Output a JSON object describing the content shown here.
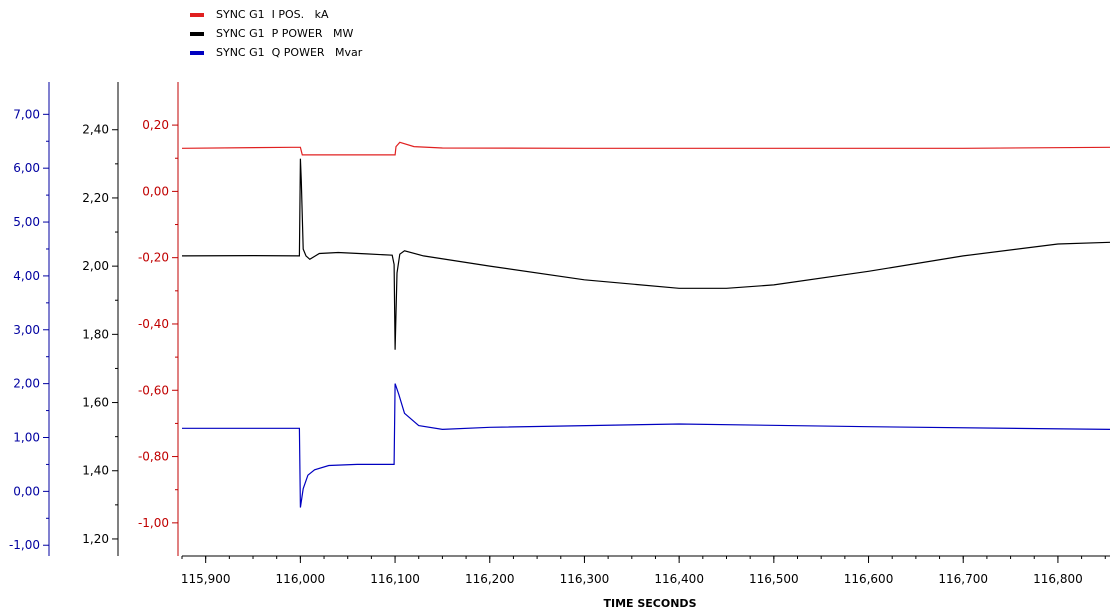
{
  "chart_data": {
    "type": "line",
    "xlabel": "TIME SECONDS",
    "x_ticks": [
      "115,900",
      "116,000",
      "116,100",
      "116,200",
      "116,300",
      "116,400",
      "116,500",
      "116,600",
      "116,700",
      "116,800"
    ],
    "xlim": [
      115.875,
      116.855
    ],
    "legend": {
      "placement": "top-left"
    },
    "grid": false,
    "axes": [
      {
        "id": "q",
        "color": "#0000a0",
        "ylim": [
          -1.2,
          7.6
        ],
        "ticks": [
          "7,00",
          "6,00",
          "5,00",
          "4,00",
          "3,00",
          "2,00",
          "1,00",
          "0,00",
          "-1,00"
        ]
      },
      {
        "id": "p",
        "color": "#000000",
        "ylim": [
          1.15,
          2.54
        ],
        "ticks": [
          "2,40",
          "2,20",
          "2,00",
          "1,80",
          "1,60",
          "1,40",
          "1,20"
        ]
      },
      {
        "id": "i",
        "color": "#c00000",
        "ylim": [
          -1.1,
          0.33
        ],
        "ticks": [
          "0,20",
          "0,00",
          "-0,20",
          "-0,40",
          "-0,60",
          "-0,80",
          "-1,00"
        ]
      }
    ],
    "series": [
      {
        "name": "SYNC G1  I POS.   kA",
        "axis": "i",
        "color": "#e02020",
        "x": [
          115.875,
          115.99,
          116.0,
          116.002,
          116.1,
          116.101,
          116.105,
          116.12,
          116.15,
          116.3,
          116.5,
          116.7,
          116.855
        ],
        "y": [
          0.13,
          0.133,
          0.133,
          0.11,
          0.11,
          0.135,
          0.148,
          0.135,
          0.131,
          0.13,
          0.13,
          0.13,
          0.133
        ]
      },
      {
        "name": "SYNC G1  P POWER   MW",
        "axis": "p",
        "color": "#000000",
        "x": [
          115.875,
          115.95,
          115.999,
          116.0,
          116.001,
          116.003,
          116.006,
          116.01,
          116.02,
          116.04,
          116.07,
          116.097,
          116.099,
          116.1,
          116.102,
          116.105,
          116.11,
          116.13,
          116.2,
          116.3,
          116.4,
          116.45,
          116.5,
          116.6,
          116.7,
          116.8,
          116.855
        ],
        "y": [
          2.03,
          2.031,
          2.03,
          2.315,
          2.25,
          2.05,
          2.03,
          2.02,
          2.037,
          2.04,
          2.036,
          2.032,
          2.005,
          1.755,
          1.98,
          2.035,
          2.045,
          2.03,
          2.0,
          1.96,
          1.935,
          1.935,
          1.945,
          1.985,
          2.03,
          2.065,
          2.07
        ]
      },
      {
        "name": "SYNC G1  Q POWER   Mvar",
        "axis": "q",
        "color": "#0000c0",
        "x": [
          115.875,
          115.95,
          115.999,
          116.0,
          116.003,
          116.008,
          116.015,
          116.03,
          116.06,
          116.099,
          116.1,
          116.104,
          116.11,
          116.125,
          116.15,
          116.2,
          116.4,
          116.6,
          116.855
        ],
        "y": [
          1.17,
          1.17,
          1.17,
          -0.3,
          0.05,
          0.3,
          0.4,
          0.48,
          0.5,
          0.5,
          2.0,
          1.8,
          1.45,
          1.22,
          1.15,
          1.19,
          1.25,
          1.2,
          1.15
        ]
      }
    ]
  }
}
